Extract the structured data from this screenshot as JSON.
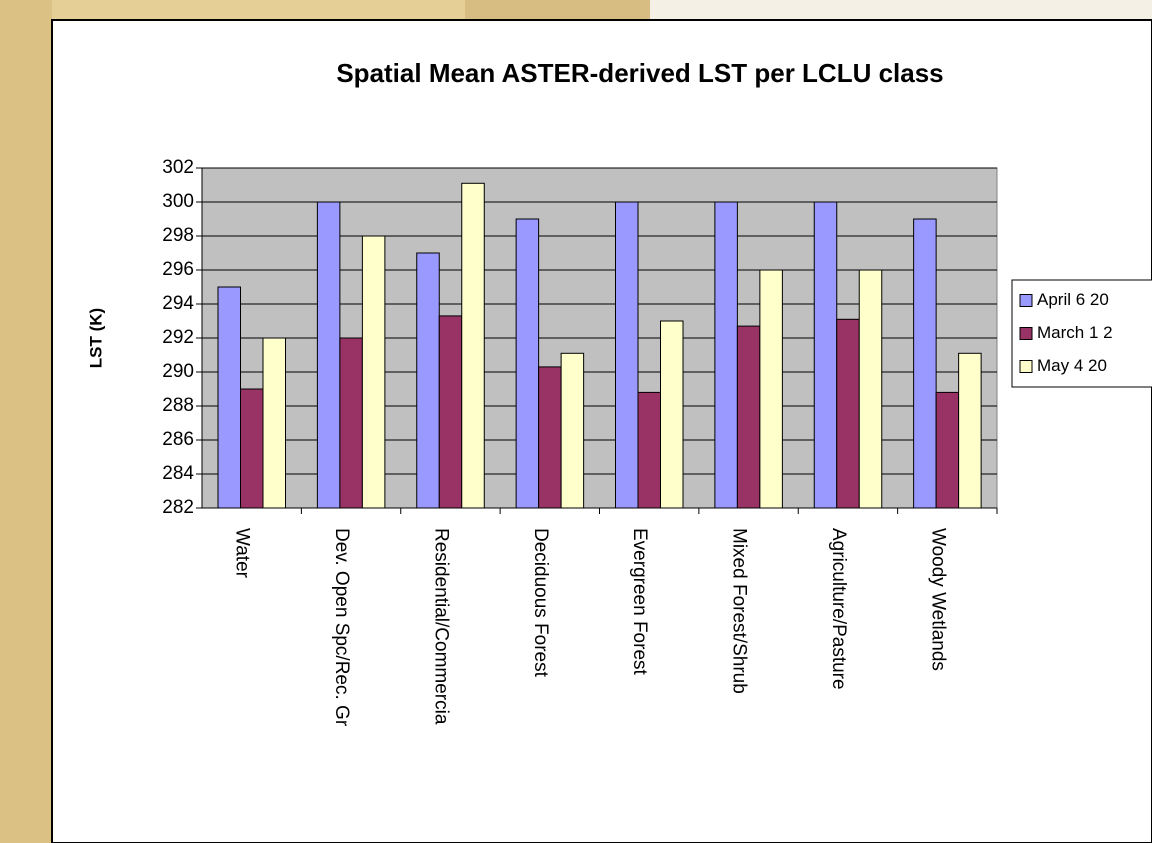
{
  "chart_data": {
    "type": "bar",
    "title": "Spatial Mean ASTER-derived LST per LCLU class",
    "y_label": "LST (K)",
    "categories": [
      "Water",
      "Dev. Open Spc/Rec. Gr",
      "Residential/Commercia",
      "Deciduous Forest",
      "Evergreen Forest",
      "Mixed Forest/Shrub",
      "Agriculture/Pasture",
      "Woody Wetlands"
    ],
    "series": [
      {
        "name": "April 6 20",
        "color": "#9999ff",
        "values": [
          295,
          300,
          297,
          299,
          300,
          300,
          300,
          299
        ]
      },
      {
        "name": "March 1 2",
        "color": "#993366",
        "values": [
          289,
          292,
          293.3,
          290.3,
          288.8,
          292.7,
          293.1,
          288.8
        ]
      },
      {
        "name": "May 4 20",
        "color": "#ffffcc",
        "values": [
          292,
          298,
          301.1,
          291.1,
          293,
          296,
          296,
          291.1
        ]
      }
    ],
    "ylim": [
      282,
      302
    ],
    "yticks": [
      282,
      284,
      286,
      288,
      290,
      292,
      294,
      296,
      298,
      300,
      302
    ],
    "grid": true,
    "legend": "right"
  }
}
